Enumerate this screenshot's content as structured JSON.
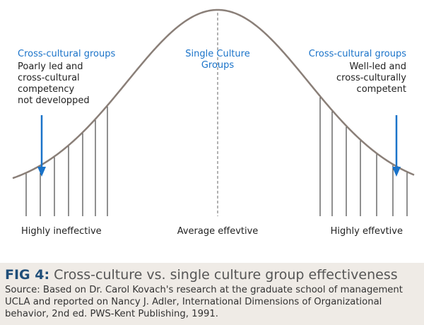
{
  "labels": {
    "left": {
      "heading": "Cross-cultural groups",
      "lines": [
        "Poarly led and",
        "cross-cultural",
        "competency",
        "not developped"
      ]
    },
    "center": {
      "lines": [
        "Single Culture",
        "Groups"
      ]
    },
    "right": {
      "heading": "Cross-cultural groups",
      "lines": [
        "Well-led and",
        "cross-culturally",
        "competent"
      ]
    }
  },
  "axis": {
    "left": "Highly ineffective",
    "center": "Average effevtive",
    "right": "Highly effevtive"
  },
  "caption": {
    "fig_label": "FIG 4:",
    "title": "Cross-culture vs. single culture group effectiveness",
    "source": "Source: Based on Dr. Carol Kovach's research at the graduate school of management UCLA and reported on Nancy J. Adler, International Dimensions of Organizational behavior, 2nd ed. PWS-Kent Publishing, 1991."
  },
  "colors": {
    "curve": "#8a7f78",
    "accent": "#1a73c9",
    "lines": "#222222",
    "caption_bg": "#efebe6",
    "fig_label": "#1f4e79"
  }
}
